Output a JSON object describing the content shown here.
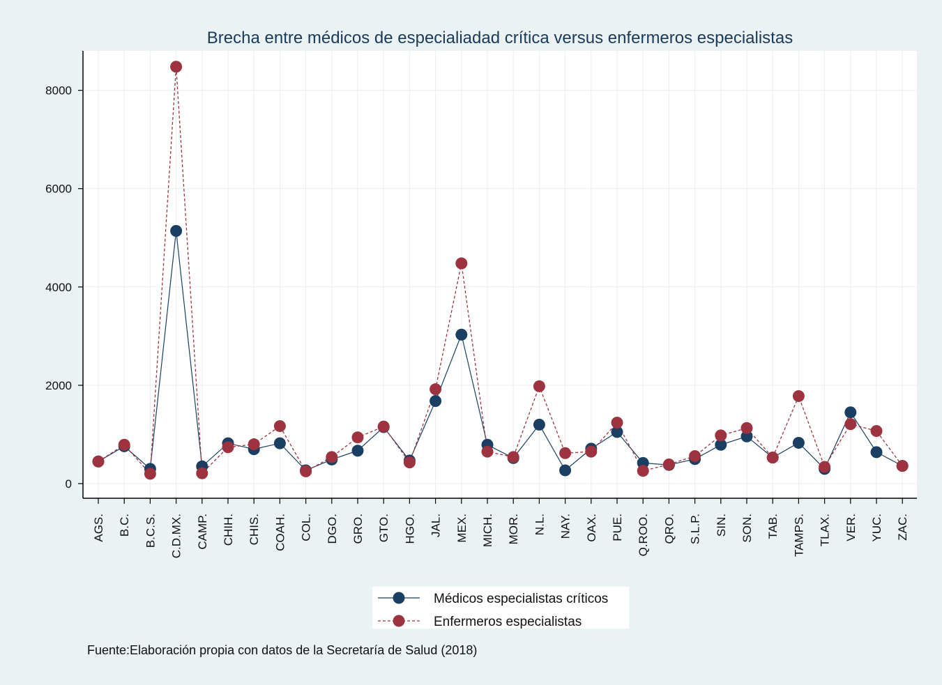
{
  "chart_data": {
    "type": "line",
    "title": "Brecha entre médicos de especialiadad crítica versus enfermeros especialistas",
    "categories": [
      "AGS.",
      "B.C.",
      "B.C.S.",
      "C.D.MX.",
      "CAMP.",
      "CHIH.",
      "CHIS.",
      "COAH.",
      "COL.",
      "DGO.",
      "GRO.",
      "GTO.",
      "HGO.",
      "JAL.",
      "MEX.",
      "MICH.",
      "MOR.",
      "N.L.",
      "NAY.",
      "OAX.",
      "PUE.",
      "Q.ROO.",
      "QRO.",
      "S.L.P.",
      "SIN.",
      "SON.",
      "TAB.",
      "TAMPS.",
      "TLAX.",
      "VER.",
      "YUC.",
      "ZAC."
    ],
    "y_ticks": [
      0,
      2000,
      4000,
      6000,
      8000
    ],
    "ylim": [
      -300,
      8800
    ],
    "grid": true,
    "legend_position": "bottom",
    "series": [
      {
        "name": "Médicos especialistas críticos",
        "color": "#1a3f62",
        "line_style": "solid",
        "values": [
          450,
          760,
          300,
          5140,
          350,
          820,
          700,
          820,
          270,
          490,
          670,
          1150,
          470,
          1680,
          3030,
          790,
          520,
          1200,
          270,
          710,
          1050,
          420,
          380,
          500,
          790,
          960,
          530,
          830,
          300,
          1450,
          640,
          360
        ]
      },
      {
        "name": "Enfermeros especialistas",
        "color": "#9e3340",
        "line_style": "dashed",
        "values": [
          450,
          790,
          200,
          8480,
          210,
          740,
          800,
          1170,
          250,
          540,
          940,
          1160,
          430,
          1920,
          4480,
          650,
          540,
          1980,
          620,
          650,
          1240,
          260,
          390,
          560,
          980,
          1130,
          530,
          1780,
          340,
          1210,
          1070,
          360
        ]
      }
    ]
  },
  "footnote": "Fuente:Elaboración propia con datos de la Secretaría de Salud (2018)"
}
